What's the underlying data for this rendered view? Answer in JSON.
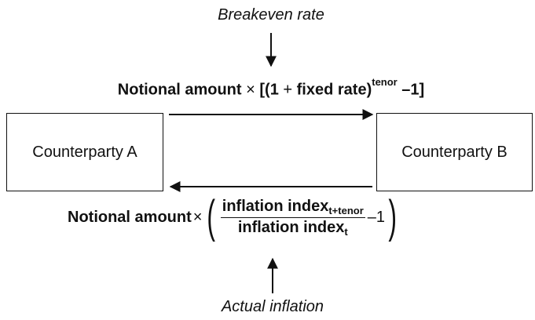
{
  "captions": {
    "top": "Breakeven rate",
    "bottom": "Actual inflation"
  },
  "boxes": {
    "a": "Counterparty A",
    "b": "Counterparty B"
  },
  "top_formula": {
    "lead": "Notional amount",
    "times": "×",
    "open": "[(1",
    "plus": "+",
    "body": "fixed rate)",
    "exponent": "tenor",
    "tail": "–1]"
  },
  "bottom_formula": {
    "lead": "Notional amount",
    "times": "×",
    "open_paren": "(",
    "numerator": "inflation index",
    "numerator_sub": "t+tenor",
    "denominator": "inflation index",
    "denominator_sub": "t",
    "minus_one": "–1",
    "close_paren": ")"
  }
}
